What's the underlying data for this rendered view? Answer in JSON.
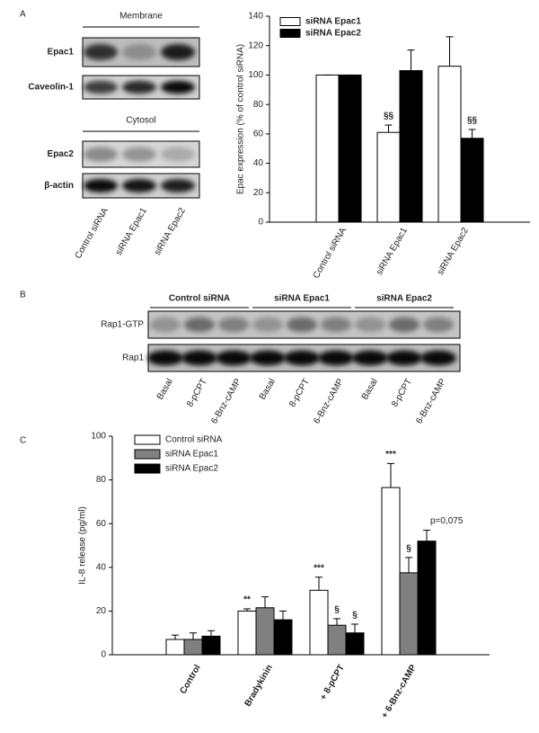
{
  "figure": {
    "panel_labels": [
      "A",
      "B",
      "C"
    ],
    "blot_a": {
      "membrane": "Membrane",
      "membrane_rows": [
        "Epac1",
        "Caveolin-1"
      ],
      "cytosol": "Cytosol",
      "cytosol_rows": [
        "Epac2",
        "β-actin"
      ],
      "lanes": [
        "Control siRNA",
        "siRNA Epac1",
        "siRNA Epac2"
      ]
    },
    "blot_b": {
      "groups": [
        "Control siRNA",
        "siRNA Epac1",
        "siRNA Epac2"
      ],
      "rows": [
        "Rap1-GTP",
        "Rap1"
      ],
      "lanes": [
        "Basal",
        "8-pCPT",
        "6-Bnz-cAMP",
        "Basal",
        "8-pCPT",
        "6-Bnz-cAMP",
        "Basal",
        "8-pCPT",
        "6-Bnz-cAMP"
      ]
    }
  },
  "chart_data": [
    {
      "type": "bar",
      "y_label": "Epac expression (% of control siRNA)",
      "categories": [
        "Control siRNA",
        "siRNA Epac1",
        "siRNA Epac2"
      ],
      "series": [
        {
          "name": "siRNA Epac1",
          "color": "#ffffff",
          "values": [
            100,
            61,
            106
          ],
          "errors": [
            0,
            5,
            20
          ],
          "annotations": [
            null,
            "§§",
            null
          ]
        },
        {
          "name": "siRNA Epac2",
          "color": "#000000",
          "values": [
            100,
            103,
            57
          ],
          "errors": [
            0,
            14,
            6
          ],
          "annotations": [
            null,
            null,
            "§§"
          ]
        }
      ],
      "ylim": [
        0,
        140
      ],
      "yticks": [
        0,
        20,
        40,
        60,
        80,
        100,
        120,
        140
      ],
      "legend": "top-left"
    },
    {
      "type": "bar",
      "y_label": "IL-8 release (pg/ml)",
      "categories": [
        "Control",
        "Bradykinin",
        "+ 8-pCPT",
        "+ 6-Bnz-cAMP"
      ],
      "series": [
        {
          "name": "Control siRNA",
          "color": "#ffffff",
          "values": [
            7,
            20,
            29.5,
            76.5
          ],
          "errors": [
            2,
            1,
            6,
            11
          ],
          "annotations": [
            null,
            "**",
            "***",
            "***"
          ]
        },
        {
          "name": "siRNA Epac1",
          "color": "#808080",
          "values": [
            7,
            21.5,
            13.5,
            37.5
          ],
          "errors": [
            3,
            5,
            3,
            7
          ],
          "annotations": [
            null,
            null,
            "§",
            "§"
          ]
        },
        {
          "name": "siRNA Epac2",
          "color": "#000000",
          "values": [
            8.5,
            16,
            10,
            52
          ],
          "errors": [
            2.5,
            4,
            4,
            5
          ],
          "annotations": [
            null,
            null,
            "§",
            "p=0,075"
          ]
        }
      ],
      "ylim": [
        0,
        100
      ],
      "yticks": [
        0,
        20,
        40,
        60,
        80,
        100
      ],
      "legend": "top-left"
    }
  ]
}
